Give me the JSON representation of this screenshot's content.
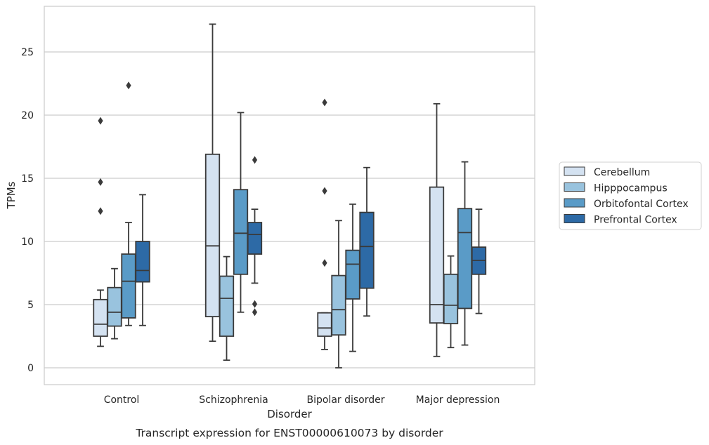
{
  "chart_data": {
    "type": "boxplot",
    "title": "Transcript expression for ENST00000610073 by disorder",
    "xlabel": "Disorder",
    "ylabel": "TPMs",
    "ylim": [
      -1.3,
      28.5
    ],
    "yticks": [
      0,
      5,
      10,
      15,
      20,
      25
    ],
    "grid": "horizontal",
    "legend_position": "right",
    "categories": [
      "Control",
      "Schizophrenia",
      "Bipolar disorder",
      "Major depression"
    ],
    "series": [
      {
        "name": "Cerebellum",
        "color": "#d4e2f1",
        "boxes": [
          {
            "whislo": 1.7,
            "q1": 2.5,
            "med": 3.45,
            "q3": 5.4,
            "whishi": 6.15,
            "fliers": [
              12.4,
              14.7,
              19.55
            ]
          },
          {
            "whislo": 2.1,
            "q1": 4.05,
            "med": 9.65,
            "q3": 16.9,
            "whishi": 27.2,
            "fliers": []
          },
          {
            "whislo": 1.45,
            "q1": 2.5,
            "med": 3.15,
            "q3": 4.35,
            "whishi": 4.35,
            "fliers": [
              8.3,
              14.0,
              21.0
            ]
          },
          {
            "whislo": 0.9,
            "q1": 3.55,
            "med": 5.0,
            "q3": 14.3,
            "whishi": 20.9,
            "fliers": []
          }
        ]
      },
      {
        "name": "Hipppocampus",
        "color": "#99c3de",
        "boxes": [
          {
            "whislo": 2.3,
            "q1": 3.3,
            "med": 4.4,
            "q3": 6.35,
            "whishi": 7.85,
            "fliers": []
          },
          {
            "whislo": 0.6,
            "q1": 2.5,
            "med": 5.5,
            "q3": 7.25,
            "whishi": 8.8,
            "fliers": []
          },
          {
            "whislo": 0.0,
            "q1": 2.6,
            "med": 4.6,
            "q3": 7.3,
            "whishi": 11.65,
            "fliers": []
          },
          {
            "whislo": 1.6,
            "q1": 3.5,
            "med": 4.95,
            "q3": 7.4,
            "whishi": 8.85,
            "fliers": []
          }
        ]
      },
      {
        "name": "Orbitofontal Cortex",
        "color": "#5a9bc7",
        "boxes": [
          {
            "whislo": 3.35,
            "q1": 3.95,
            "med": 6.85,
            "q3": 9.0,
            "whishi": 11.5,
            "fliers": [
              22.35
            ]
          },
          {
            "whislo": 4.4,
            "q1": 7.4,
            "med": 10.65,
            "q3": 14.1,
            "whishi": 20.2,
            "fliers": []
          },
          {
            "whislo": 1.3,
            "q1": 5.45,
            "med": 8.2,
            "q3": 9.3,
            "whishi": 12.95,
            "fliers": []
          },
          {
            "whislo": 1.8,
            "q1": 4.7,
            "med": 10.7,
            "q3": 12.6,
            "whishi": 16.3,
            "fliers": []
          }
        ]
      },
      {
        "name": "Prefrontal Cortex",
        "color": "#2d6aa6",
        "boxes": [
          {
            "whislo": 3.35,
            "q1": 6.8,
            "med": 7.7,
            "q3": 10.0,
            "whishi": 13.7,
            "fliers": []
          },
          {
            "whislo": 6.7,
            "q1": 9.0,
            "med": 10.55,
            "q3": 11.5,
            "whishi": 12.55,
            "fliers": [
              4.4,
              5.05,
              16.45
            ]
          },
          {
            "whislo": 4.1,
            "q1": 6.3,
            "med": 9.6,
            "q3": 12.3,
            "whishi": 15.85,
            "fliers": []
          },
          {
            "whislo": 4.3,
            "q1": 7.4,
            "med": 8.5,
            "q3": 9.55,
            "whishi": 12.55,
            "fliers": []
          }
        ]
      }
    ]
  }
}
